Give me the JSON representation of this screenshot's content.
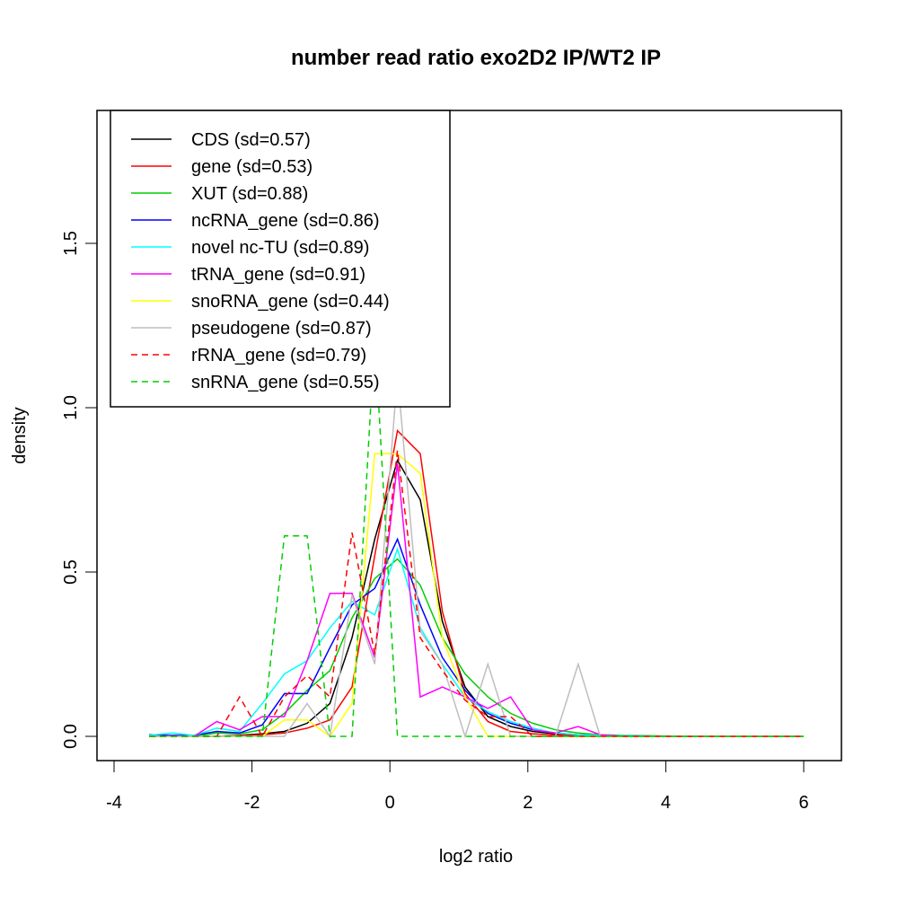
{
  "chart_data": {
    "type": "line",
    "title": "number read ratio exo2D2 IP/WT2 IP",
    "xlabel": "log2 ratio",
    "ylabel": "density",
    "xlim": [
      -4,
      6.5
    ],
    "ylim": [
      -0.07,
      1.9
    ],
    "xticks": [
      -4,
      -2,
      0,
      2,
      4,
      6
    ],
    "xtick_labels": [
      "-4",
      "-2",
      "0",
      "2",
      "4",
      "6"
    ],
    "yticks": [
      0.0,
      0.5,
      1.0,
      1.5
    ],
    "ytick_labels": [
      "0.0",
      "0.5",
      "1.0",
      "1.5"
    ],
    "grid": false,
    "legend_position": "top-left",
    "x": [
      -3.49,
      -3.16,
      -2.84,
      -2.51,
      -2.18,
      -1.85,
      -1.53,
      -1.2,
      -0.87,
      -0.55,
      -0.22,
      0.11,
      0.44,
      0.76,
      1.09,
      1.42,
      1.75,
      2.07,
      2.4,
      2.73,
      3.05,
      3.38,
      3.71,
      4.04,
      4.36,
      4.69,
      5.02,
      5.35,
      5.67,
      6.0
    ],
    "series": [
      {
        "name": "CDS (sd=0.57)",
        "color": "#000000",
        "dash": "solid",
        "values": [
          0,
          0,
          0,
          0,
          0.003,
          0.008,
          0.015,
          0.04,
          0.1,
          0.3,
          0.6,
          0.84,
          0.72,
          0.35,
          0.15,
          0.06,
          0.03,
          0.015,
          0.008,
          0.004,
          0.002,
          0.001,
          0,
          0,
          0,
          0,
          0,
          0,
          0,
          0
        ]
      },
      {
        "name": "gene (sd=0.53)",
        "color": "#ff0000",
        "dash": "solid",
        "values": [
          0,
          0,
          0,
          0,
          0.002,
          0.005,
          0.01,
          0.025,
          0.05,
          0.15,
          0.55,
          0.93,
          0.86,
          0.38,
          0.13,
          0.045,
          0.015,
          0.008,
          0.004,
          0.002,
          0.001,
          0,
          0,
          0,
          0,
          0,
          0,
          0,
          0,
          0
        ]
      },
      {
        "name": "XUT (sd=0.88)",
        "color": "#00cd00",
        "dash": "solid",
        "values": [
          0,
          0,
          0,
          0.01,
          0.008,
          0.02,
          0.07,
          0.14,
          0.2,
          0.36,
          0.48,
          0.54,
          0.46,
          0.3,
          0.19,
          0.12,
          0.07,
          0.04,
          0.02,
          0.01,
          0.005,
          0.003,
          0.002,
          0.001,
          0,
          0,
          0,
          0,
          0,
          0
        ]
      },
      {
        "name": "ncRNA_gene (sd=0.86)",
        "color": "#0000ff",
        "dash": "solid",
        "values": [
          0.005,
          0.003,
          0.003,
          0.015,
          0.01,
          0.035,
          0.13,
          0.13,
          0.27,
          0.4,
          0.45,
          0.6,
          0.4,
          0.24,
          0.14,
          0.07,
          0.04,
          0.02,
          0.01,
          0.005,
          0.003,
          0.002,
          0.001,
          0,
          0,
          0,
          0,
          0,
          0,
          0
        ]
      },
      {
        "name": "novel nc-TU (sd=0.89)",
        "color": "#00ffff",
        "dash": "solid",
        "values": [
          0.003,
          0.01,
          0.003,
          0.025,
          0.015,
          0.1,
          0.19,
          0.23,
          0.33,
          0.41,
          0.37,
          0.57,
          0.33,
          0.22,
          0.12,
          0.075,
          0.045,
          0.025,
          0.01,
          0.005,
          0.003,
          0.002,
          0.001,
          0,
          0,
          0,
          0,
          0,
          0,
          0
        ]
      },
      {
        "name": "tRNA_gene (sd=0.91)",
        "color": "#ff00ff",
        "dash": "solid",
        "values": [
          0,
          0,
          0,
          0.045,
          0.02,
          0.06,
          0.06,
          0.23,
          0.435,
          0.435,
          0.24,
          0.83,
          0.12,
          0.15,
          0.12,
          0.085,
          0.12,
          0.02,
          0.01,
          0.03,
          0.005,
          0,
          0,
          0,
          0,
          0,
          0,
          0,
          0,
          0
        ]
      },
      {
        "name": "snoRNA_gene (sd=0.44)",
        "color": "#ffff00",
        "dash": "solid",
        "values": [
          0,
          0,
          0,
          0,
          0,
          0,
          0.05,
          0.05,
          0,
          0.1,
          0.86,
          0.86,
          0.8,
          0.3,
          0.12,
          0,
          0,
          0,
          0,
          0,
          0,
          0,
          0,
          0,
          0,
          0,
          0,
          0,
          0,
          0
        ]
      },
      {
        "name": "pseudogene (sd=0.87)",
        "color": "#bebebe",
        "dash": "solid",
        "values": [
          0,
          0,
          0,
          0,
          0,
          0,
          0,
          0.1,
          0,
          0.43,
          0.22,
          1.1,
          0.32,
          0.22,
          0,
          0.22,
          0,
          0,
          0,
          0.22,
          0,
          0,
          0,
          0,
          0,
          0,
          0,
          0,
          0,
          0
        ]
      },
      {
        "name": "rRNA_gene (sd=0.79)",
        "color": "#ff0000",
        "dash": "dashed",
        "values": [
          0,
          0,
          0,
          0,
          0.12,
          0,
          0.12,
          0.185,
          0.12,
          0.62,
          0.25,
          0.87,
          0.3,
          0.2,
          0.11,
          0.06,
          0.06,
          0,
          0,
          0,
          0,
          0,
          0,
          0,
          0,
          0,
          0,
          0,
          0,
          0
        ]
      },
      {
        "name": "snRNA_gene (sd=0.55)",
        "color": "#00cd00",
        "dash": "dashed",
        "values": [
          0,
          0,
          0,
          0,
          0,
          0,
          0.61,
          0.61,
          0,
          0,
          1.22,
          0,
          0,
          0,
          0,
          0,
          0,
          0,
          0,
          0,
          0,
          0,
          0,
          0,
          0,
          0,
          0,
          0,
          0,
          0
        ]
      }
    ]
  }
}
